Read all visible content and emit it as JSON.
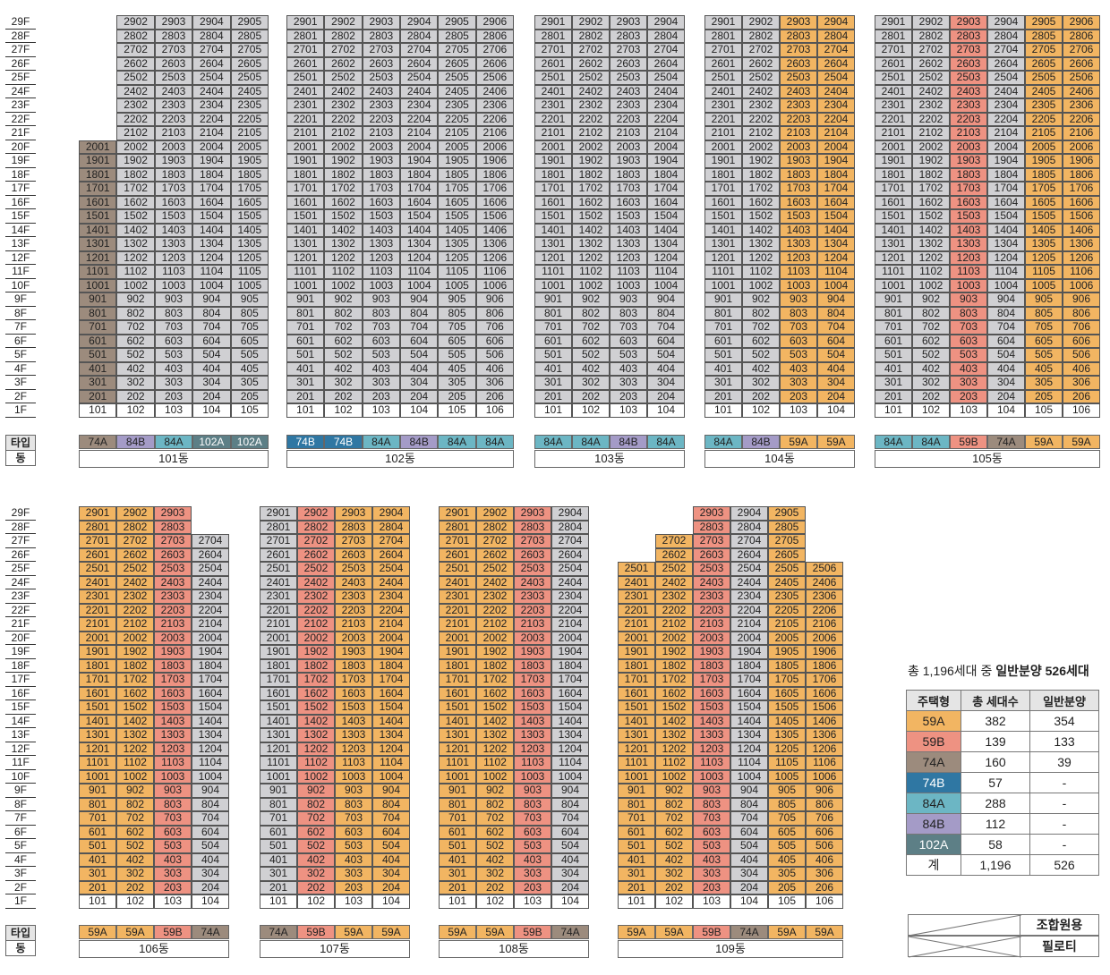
{
  "floor_labels": [
    "29F",
    "28F",
    "27F",
    "26F",
    "25F",
    "24F",
    "23F",
    "22F",
    "21F",
    "20F",
    "19F",
    "18F",
    "17F",
    "16F",
    "15F",
    "14F",
    "13F",
    "12F",
    "11F",
    "10F",
    "9F",
    "8F",
    "7F",
    "6F",
    "5F",
    "4F",
    "3F",
    "2F",
    "1F"
  ],
  "row_labels": {
    "type": "타입",
    "dong": "동"
  },
  "buildings": [
    {
      "id": "101",
      "name": "101동",
      "types": [
        "74A",
        "84B",
        "84A",
        "102A",
        "102A"
      ],
      "floors": [
        "0:4",
        "0:4",
        "0:4",
        "0:4",
        "0:4",
        "0:4",
        "0:4",
        "0:4",
        "0:4",
        "20",
        "20",
        "20",
        "20",
        "20",
        "20",
        "20",
        "20",
        "20",
        "20",
        "20",
        "20",
        "20",
        "20",
        "20",
        "20",
        "20",
        "20",
        "20",
        "P"
      ]
    },
    {
      "id": "102",
      "name": "102동",
      "types": [
        "74B",
        "74B",
        "84A",
        "84B",
        "84A",
        "84A"
      ],
      "floors": [
        "0",
        "0",
        "0",
        "0",
        "0",
        "0",
        "0",
        "0",
        "0",
        "0",
        "0",
        "0",
        "0",
        "0",
        "0",
        "0",
        "0",
        "0",
        "0",
        "0",
        "0",
        "0",
        "0",
        "0",
        "0",
        "0",
        "0",
        "0",
        "P"
      ]
    },
    {
      "id": "103",
      "name": "103동",
      "types": [
        "84A",
        "84A",
        "84B",
        "84A"
      ],
      "floors": [
        "0",
        "0",
        "0",
        "0",
        "0",
        "0",
        "0",
        "0",
        "0",
        "0",
        "0",
        "0",
        "0",
        "0",
        "0",
        "0",
        "0",
        "0",
        "0",
        "0",
        "0",
        "0",
        "0",
        "0",
        "0",
        "0",
        "0",
        "0",
        "P"
      ]
    },
    {
      "id": "104",
      "name": "104동",
      "types": [
        "84A",
        "84B",
        "59A",
        "59A"
      ],
      "floors": [
        "0",
        "0",
        "0",
        "0",
        "0",
        "0",
        "0",
        "0",
        "0",
        "0",
        "0",
        "0",
        "0",
        "0",
        "0",
        "0",
        "0",
        "0",
        "0",
        "0",
        "0",
        "0",
        "0",
        "0",
        "0",
        "0",
        "0",
        "0",
        "P"
      ]
    },
    {
      "id": "105",
      "name": "105동",
      "types": [
        "84A",
        "84A",
        "59B",
        "74A",
        "59A",
        "59A"
      ],
      "floors": [
        "0:5",
        "0:5",
        "0",
        "0",
        "0",
        "0",
        "0",
        "0",
        "0",
        "0",
        "0",
        "0",
        "0",
        "0",
        "0",
        "0",
        "0",
        "0",
        "0",
        "0",
        "0",
        "0",
        "0",
        "0",
        "0",
        "0",
        "0",
        "0",
        "P"
      ]
    },
    {
      "id": "106",
      "name": "106동",
      "types": [
        "59A",
        "59A",
        "59B",
        "74A"
      ],
      "floors": [
        "0:2",
        "0:2",
        "0",
        "0",
        "0",
        "0",
        "0",
        "0",
        "0",
        "0",
        "0",
        "0",
        "0",
        "0",
        "0",
        "0",
        "0",
        "0",
        "0",
        "0",
        "0",
        "0",
        "0",
        "0",
        "0",
        "0",
        "0",
        "0",
        "P"
      ]
    },
    {
      "id": "107",
      "name": "107동",
      "types": [
        "74A",
        "59B",
        "59A",
        "59A"
      ],
      "floors": [
        "0:3",
        "0",
        "0",
        "0",
        "0",
        "0",
        "0",
        "0",
        "0",
        "0",
        "0",
        "0",
        "0",
        "0",
        "0",
        "0",
        "0",
        "0",
        "0",
        "0",
        "0",
        "0",
        "0",
        "0",
        "0",
        "0",
        "0",
        "0",
        "P"
      ]
    },
    {
      "id": "108",
      "name": "108동",
      "types": [
        "59A",
        "59A",
        "59B",
        "74A"
      ],
      "floors": [
        "0",
        "0",
        "0",
        "0",
        "0",
        "0",
        "0",
        "0",
        "0",
        "0",
        "0",
        "0",
        "0",
        "0",
        "0",
        "0",
        "0",
        "0",
        "0",
        "0",
        "0",
        "0",
        "0",
        "0",
        "0",
        "0",
        "0",
        "0",
        "P"
      ]
    },
    {
      "id": "109",
      "name": "109동",
      "types": [
        "59A",
        "59A",
        "59B",
        "74A",
        "59A",
        "59A"
      ],
      "floors": [
        "2:4",
        "2:4",
        "1:4",
        "1:4",
        "0:5",
        "0:5",
        "0",
        "0",
        "0",
        "0",
        "0",
        "0",
        "0",
        "0",
        "0",
        "0",
        "0",
        "0",
        "0",
        "0",
        "0",
        "0",
        "0",
        "0",
        "0",
        "0",
        "0",
        "0",
        "P"
      ]
    }
  ],
  "legend": {
    "title_prefix": "총 1,196세대 중 ",
    "title_emphasis": "일반분양 526세대",
    "headers": [
      "주택형",
      "총 세대수",
      "일반분양"
    ],
    "rows": [
      {
        "type": "59A",
        "total": "382",
        "general": "354",
        "color": "#f2b562"
      },
      {
        "type": "59B",
        "total": "139",
        "general": "133",
        "color": "#ee9282"
      },
      {
        "type": "74A",
        "total": "160",
        "general": "39",
        "color": "#9c8b7d"
      },
      {
        "type": "74B",
        "total": "57",
        "general": "-",
        "color": "#2f77a3"
      },
      {
        "type": "84A",
        "total": "288",
        "general": "-",
        "color": "#6cb6c4"
      },
      {
        "type": "84B",
        "total": "112",
        "general": "-",
        "color": "#a49bc7"
      },
      {
        "type": "102A",
        "total": "58",
        "general": "-",
        "color": "#5d7f86"
      }
    ],
    "total_row": {
      "label": "계",
      "total": "1,196",
      "general": "526"
    },
    "key_union": "조합원용",
    "key_piloti": "필로티"
  },
  "colors": {
    "gray": "#d0d0d3",
    "orange": "#f2b562",
    "salmon": "#ee9282",
    "brown": "#9c8b7d"
  }
}
